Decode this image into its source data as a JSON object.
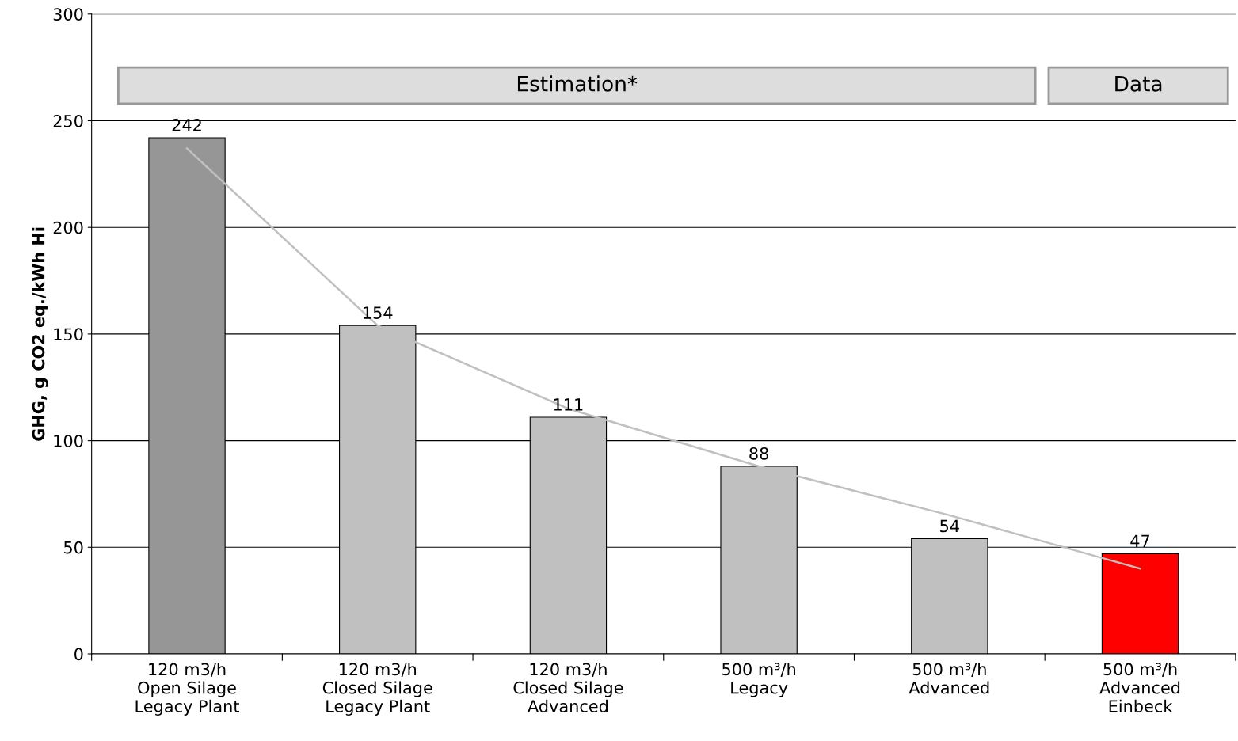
{
  "chart_data": {
    "type": "bar",
    "ylabel": "GHG, g CO2 eq./kWh Hi",
    "categories": [
      "120 m3/h\nOpen Silage\nLegacy Plant",
      "120 m3/h\nClosed Silage\nLegacy Plant",
      "120 m3/h\nClosed Silage\nAdvanced",
      "500 m³/h\nLegacy",
      "500 m³/h\nAdvanced",
      "500 m³/h\nAdvanced\nEinbeck"
    ],
    "series": [
      {
        "value_labels": [
          "242",
          "154",
          "111",
          "88",
          "54",
          "47"
        ],
        "values": [
          242,
          154,
          111,
          88,
          54,
          47
        ],
        "colors": [
          "#969696",
          "#c0c0c0",
          "#c0c0c0",
          "#c0c0c0",
          "#c0c0c0",
          "#ff0000"
        ]
      },
      {
        "type": "line",
        "color": "#c0c0c0",
        "values": [
          237,
          154,
          115,
          88,
          65,
          40
        ]
      }
    ],
    "ylim": [
      0,
      300
    ],
    "yticks": [
      0,
      50,
      100,
      150,
      200,
      250,
      300
    ],
    "grid": "y",
    "annotations": [
      "Estimation*",
      "Data"
    ]
  }
}
